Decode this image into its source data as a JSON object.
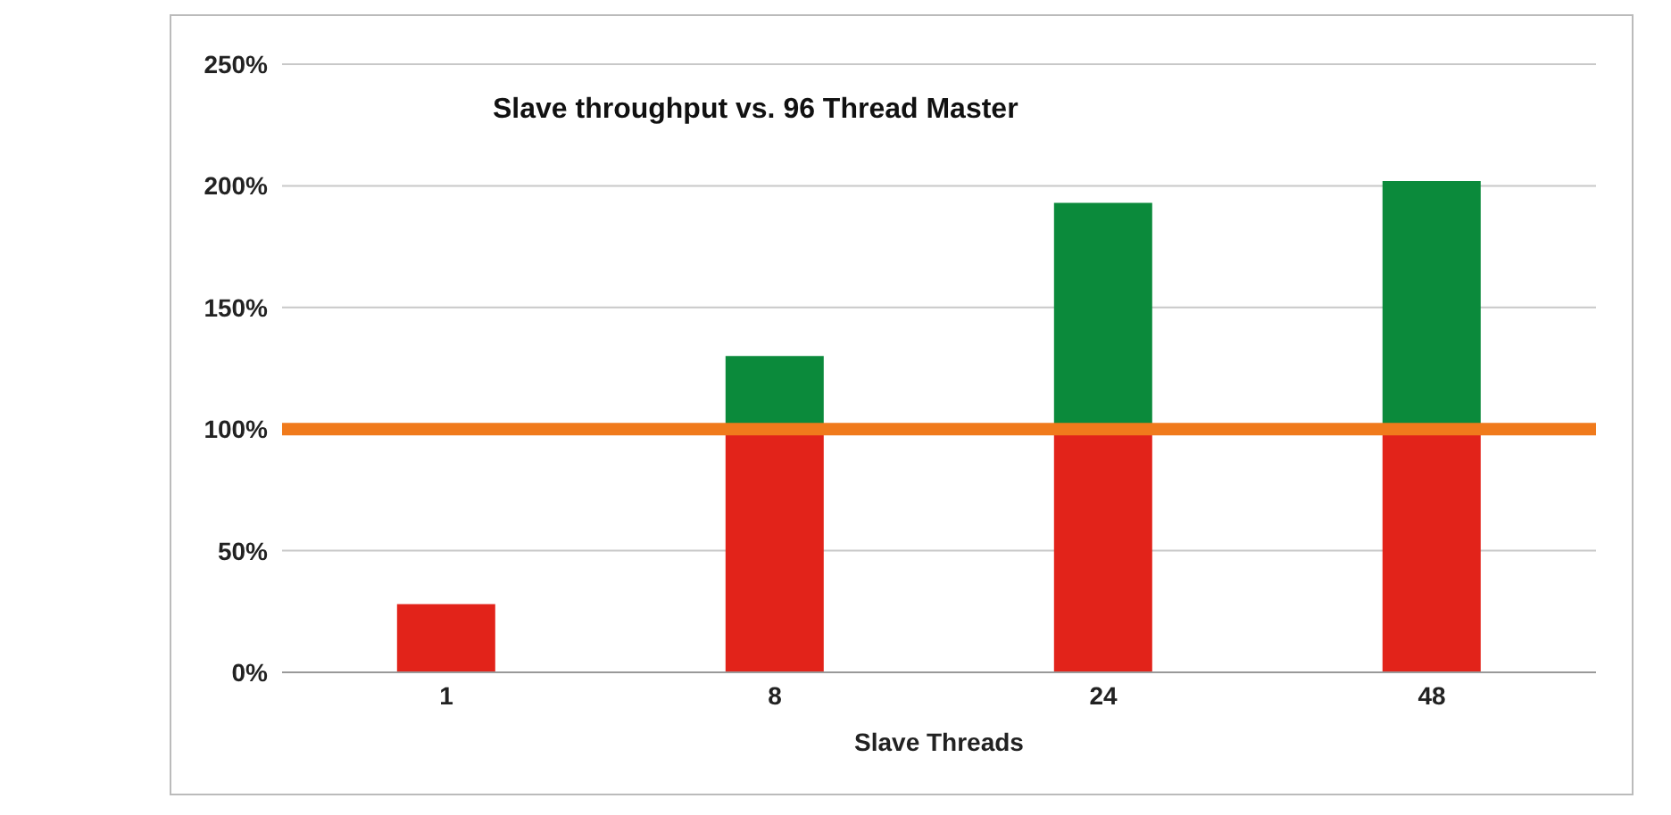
{
  "chart_data": {
    "type": "bar",
    "title": "Slave throughput vs. 96 Thread Master",
    "xlabel": "Slave Threads",
    "categories": [
      "1",
      "8",
      "24",
      "48"
    ],
    "stacked": true,
    "series": [
      {
        "color": "#e2231a",
        "values": [
          28,
          100,
          100,
          100
        ]
      },
      {
        "color": "#0b8a3b",
        "values": [
          0,
          30,
          93,
          102
        ]
      }
    ],
    "ylim": [
      0,
      250
    ],
    "yticks": [
      {
        "value": 0,
        "label": "0%"
      },
      {
        "value": 50,
        "label": "50%"
      },
      {
        "value": 100,
        "label": "100%"
      },
      {
        "value": 150,
        "label": "150%"
      },
      {
        "value": 200,
        "label": "200%"
      },
      {
        "value": 250,
        "label": "250%"
      }
    ],
    "grid": "y",
    "legend": false,
    "ref_lines": [
      {
        "axis": "y",
        "value": 100,
        "color": "#f07a1c"
      }
    ]
  }
}
